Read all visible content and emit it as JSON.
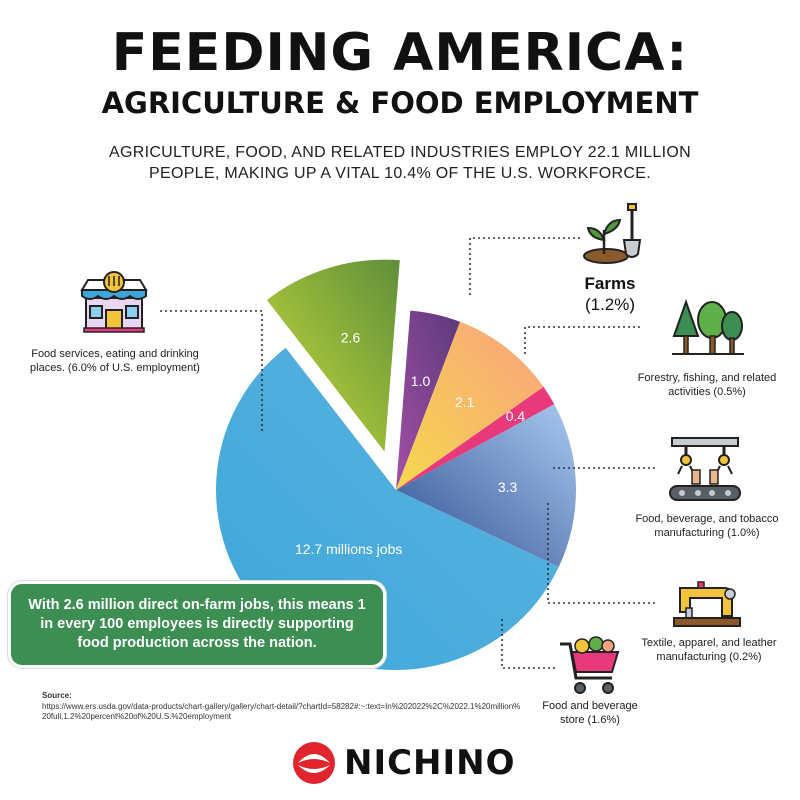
{
  "header": {
    "title_line1": "FEEDING AMERICA:",
    "title_line2": "AGRICULTURE & FOOD EMPLOYMENT",
    "subtitle": "AGRICULTURE, FOOD, AND RELATED INDUSTRIES EMPLOY 22.1 MILLION PEOPLE, MAKING UP A VITAL 10.4% OF THE U.S. WORKFORCE."
  },
  "chart_data": {
    "type": "pie",
    "series": [
      {
        "key": "farms",
        "value": 2.6,
        "data_label": "2.6",
        "color": "#5f8f3a",
        "color_light": "#c8dc3a"
      },
      {
        "key": "forestry",
        "value": 1.0,
        "data_label": "1.0",
        "color": "#5b3a7a",
        "color_light": "#a44fa6"
      },
      {
        "key": "food_bev_mfg",
        "value": 2.1,
        "data_label": "2.1",
        "color": "#f9a27f",
        "color_light": "#f6d84c"
      },
      {
        "key": "textile",
        "value": 0.4,
        "data_label": "0.4",
        "color": "#e83a7a",
        "color_light": "#e83a7a"
      },
      {
        "key": "food_bev_store",
        "value": 3.3,
        "data_label": "3.3",
        "color": "#2f4f8f",
        "color_light": "#a9c9f2"
      },
      {
        "key": "food_services",
        "value": 12.7,
        "data_label": "12.7 millions jobs",
        "color": "#3ea6d8",
        "color_light": "#5cb4e2"
      }
    ]
  },
  "labels": {
    "food_services": "Food services, eating and drinking places. (6.0% of U.S. employment)",
    "farms_name": "Farms",
    "farms_pct": "(1.2%)",
    "forestry": "Forestry, fishing, and related activities (0.5%)",
    "food_bev_mfg": "Food, beverage, and tobacco manufacturing (1.0%)",
    "textile": "Textile, apparel, and leather manufacturing (0.2%)",
    "food_bev_store": "Food and beverage store (1.6%)"
  },
  "callout": "With 2.6 million direct on-farm jobs, this means 1 in every 100 employees is directly supporting food production across the nation.",
  "source": {
    "heading": "Source:",
    "url": "https://www.ers.usda.gov/data-products/chart-gallery/gallery/chart-detail/?chartId=58282#:~:text=In%202022%2C%2022.1%20million%20full,1.2%20percent%20of%20U.S.%20employment"
  },
  "logo": {
    "text": "NICHINO",
    "color": "#e0262c"
  },
  "icons": [
    "storefront-icon",
    "seedling-shovel-icon",
    "trees-icon",
    "factory-robot-arm-icon",
    "sewing-machine-icon",
    "shopping-cart-icon"
  ]
}
